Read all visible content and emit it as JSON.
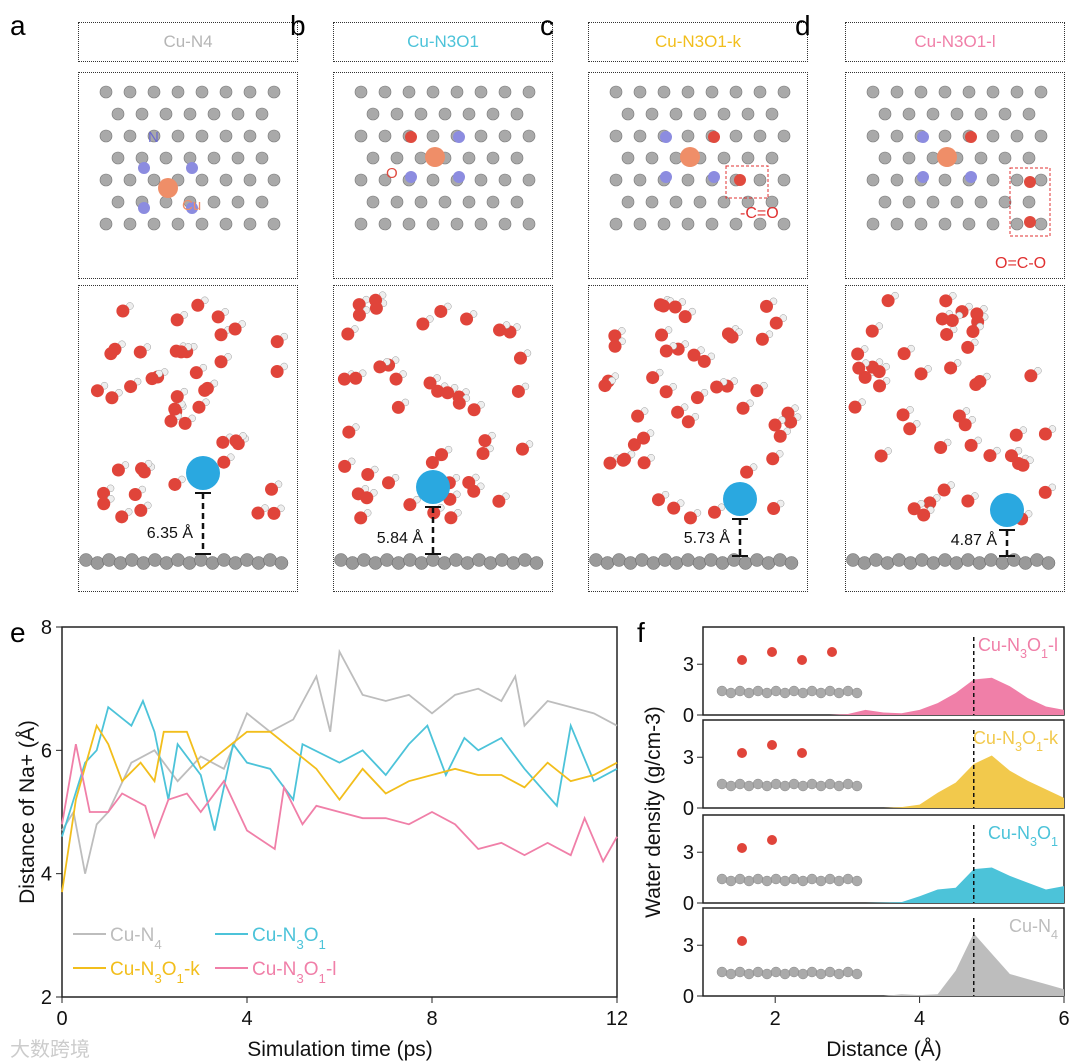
{
  "panels": [
    {
      "letter": "a",
      "title": "Cu-N4",
      "color": "#b5b5b5",
      "distance": "6.35 Å",
      "labels": [
        "N",
        "Cu"
      ]
    },
    {
      "letter": "b",
      "title": "Cu-N3O1",
      "color": "#4cc3d9",
      "distance": "5.84 Å",
      "labels": [
        "O"
      ]
    },
    {
      "letter": "c",
      "title": "Cu-N3O1-k",
      "color": "#f2be1c",
      "distance": "5.73 Å",
      "labels": [
        "-C=O"
      ]
    },
    {
      "letter": "d",
      "title": "Cu-N3O1-l",
      "color": "#f07fa8",
      "distance": "4.87 Å",
      "labels": [
        "O=C-O"
      ]
    }
  ],
  "watermark": "大数跨境",
  "chart_data": [
    {
      "type": "line",
      "panel": "e",
      "xlabel": "Simulation time (ps)",
      "ylabel": "Distance of Na+ (Å)",
      "xlim": [
        0,
        12
      ],
      "ylim": [
        2,
        8
      ],
      "xticks": [
        "0",
        "4",
        "8",
        "12"
      ],
      "yticks": [
        "2",
        "4",
        "6",
        "8"
      ],
      "legend": "bottom-left",
      "series": [
        {
          "name": "Cu-N4",
          "color": "#bdbdbd",
          "x": [
            0,
            0.25,
            0.5,
            0.75,
            1,
            1.5,
            2,
            2.5,
            3,
            3.5,
            4,
            4.5,
            5,
            5.5,
            5.8,
            6,
            6.5,
            7,
            7.5,
            8,
            8.5,
            9,
            9.5,
            9.8,
            10,
            10.5,
            11,
            11.5,
            12
          ],
          "y": [
            4.7,
            5.0,
            4.0,
            4.8,
            5.0,
            5.8,
            6.0,
            5.5,
            5.9,
            5.7,
            6.6,
            6.3,
            6.5,
            7.2,
            6.3,
            7.6,
            6.9,
            6.8,
            6.9,
            6.6,
            6.9,
            7.0,
            6.8,
            7.2,
            6.4,
            6.8,
            6.7,
            6.6,
            6.4
          ]
        },
        {
          "name": "Cu-N3O1",
          "color": "#4cc3d9",
          "x": [
            0,
            0.5,
            0.75,
            1,
            1.5,
            1.75,
            2,
            2.3,
            2.5,
            3,
            3.3,
            3.7,
            4,
            4.5,
            5,
            5.2,
            6,
            6.5,
            7,
            7.5,
            7.9,
            8.3,
            8.7,
            9,
            9.5,
            10,
            10.7,
            11,
            11.5,
            12
          ],
          "y": [
            4.6,
            5.8,
            6.0,
            6.7,
            6.4,
            6.8,
            6.3,
            5.2,
            6.1,
            5.6,
            4.7,
            6.1,
            5.8,
            5.7,
            5.2,
            6.1,
            5.8,
            6.0,
            5.6,
            6.1,
            6.4,
            5.6,
            6.2,
            6.0,
            6.2,
            5.7,
            5.1,
            6.4,
            5.5,
            5.7
          ]
        },
        {
          "name": "Cu-N3O1-k",
          "color": "#f2be1c",
          "x": [
            0,
            0.3,
            0.75,
            1,
            1.3,
            1.7,
            2,
            2.2,
            2.7,
            3,
            3.5,
            4,
            4.5,
            5,
            5.5,
            6,
            6.5,
            7,
            7.5,
            8,
            8.5,
            9,
            9.5,
            10,
            10.5,
            11,
            11.5,
            12
          ],
          "y": [
            3.7,
            5.2,
            6.4,
            6.1,
            5.5,
            5.8,
            5.5,
            6.3,
            6.3,
            5.7,
            6.0,
            6.3,
            6.3,
            6.0,
            5.7,
            5.2,
            5.7,
            5.3,
            5.5,
            5.6,
            5.7,
            5.6,
            5.6,
            5.4,
            5.8,
            5.5,
            5.6,
            5.8
          ]
        },
        {
          "name": "Cu-N3O1-l",
          "color": "#f07fa8",
          "x": [
            0,
            0.3,
            0.6,
            1,
            1.3,
            1.8,
            2,
            2.3,
            2.7,
            3,
            3.5,
            4,
            4.6,
            4.8,
            5.2,
            5.5,
            6,
            6.5,
            7,
            7.5,
            8,
            8.5,
            9,
            9.5,
            10,
            10.5,
            11,
            11.3,
            11.7,
            12
          ],
          "y": [
            4.8,
            6.1,
            5.0,
            5.0,
            5.3,
            5.1,
            4.6,
            5.2,
            5.3,
            5.0,
            5.5,
            4.7,
            4.4,
            5.4,
            4.8,
            5.1,
            5.0,
            4.9,
            4.9,
            4.8,
            5.0,
            4.8,
            4.4,
            4.5,
            4.3,
            4.5,
            4.3,
            4.9,
            4.2,
            4.6
          ]
        }
      ]
    },
    {
      "type": "area",
      "panel": "f",
      "xlabel": "Distance (Å)",
      "ylabel": "Water density (g/cm-3)",
      "xlim": [
        1,
        6
      ],
      "ylim": [
        0,
        5.2
      ],
      "xticks": [
        "2",
        "4",
        "6"
      ],
      "yticks": [
        "0",
        "3"
      ],
      "dashed_x": 4.75,
      "x": [
        1,
        1.25,
        1.5,
        1.75,
        2,
        2.25,
        2.5,
        2.75,
        3,
        3.25,
        3.5,
        3.75,
        4,
        4.25,
        4.5,
        4.75,
        5,
        5.25,
        5.5,
        5.75,
        6
      ],
      "series": [
        {
          "name": "Cu-N3O1-l",
          "color": "#f07fa8",
          "y": [
            0,
            0,
            0,
            0,
            0,
            0,
            0,
            0,
            0.05,
            0.3,
            0.15,
            0.1,
            0.3,
            0.7,
            1.3,
            2.1,
            2.2,
            1.7,
            1.0,
            0.5,
            0.3
          ]
        },
        {
          "name": "Cu-N3O1-k",
          "color": "#f2c94c",
          "y": [
            0,
            0,
            0,
            0,
            0,
            0,
            0,
            0,
            0,
            0,
            0,
            0.05,
            0.2,
            0.9,
            1.5,
            2.6,
            3.1,
            2.2,
            1.6,
            1.1,
            0.6
          ]
        },
        {
          "name": "Cu-N3O1",
          "color": "#4cc3d9",
          "y": [
            0,
            0,
            0,
            0,
            0,
            0,
            0,
            0,
            0,
            0,
            0.02,
            0.05,
            0.4,
            0.8,
            0.9,
            2.0,
            2.1,
            1.6,
            1.2,
            0.8,
            1.0
          ]
        },
        {
          "name": "Cu-N4",
          "color": "#bdbdbd",
          "y": [
            0,
            0,
            0,
            0,
            0,
            0,
            0,
            0,
            0,
            0,
            0,
            0.1,
            0.05,
            0.1,
            1.5,
            3.7,
            2.5,
            1.3,
            1.0,
            0.7,
            0.4
          ]
        }
      ]
    }
  ]
}
